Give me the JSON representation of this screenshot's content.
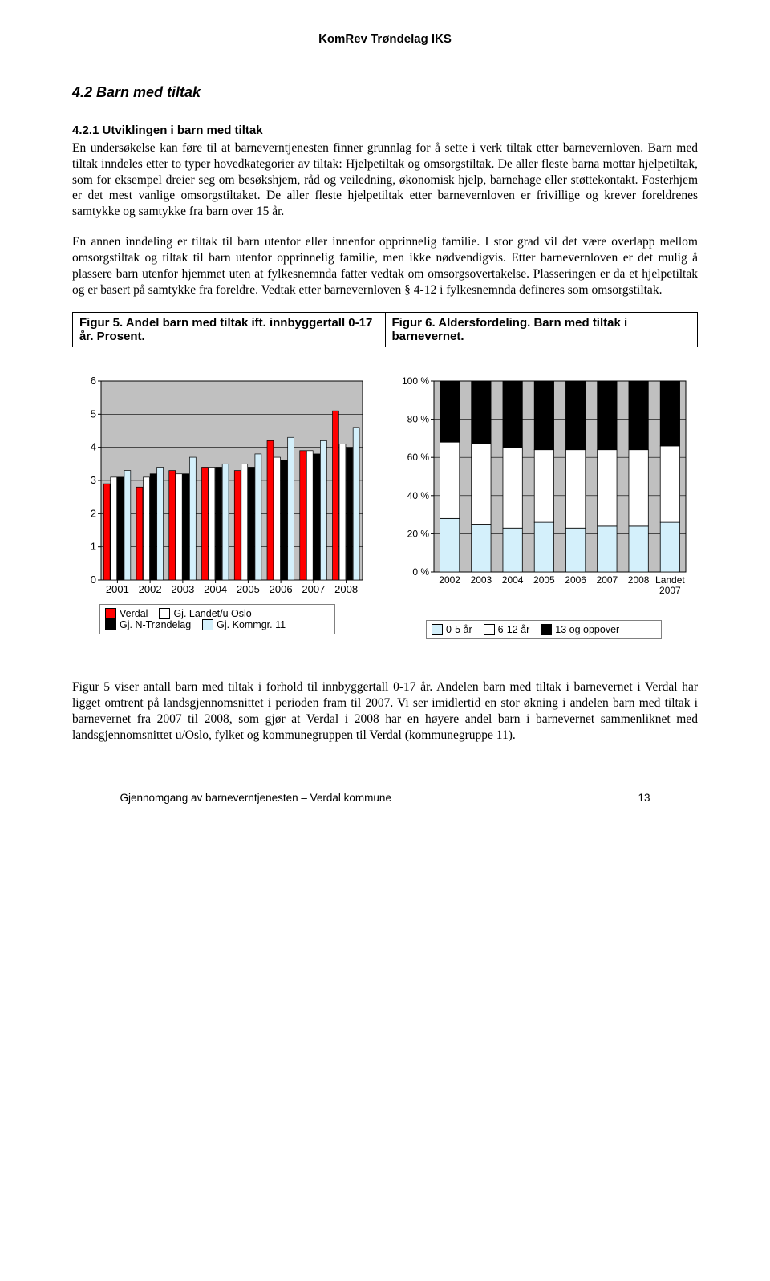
{
  "header": "KomRev Trøndelag IKS",
  "section_title": "4.2 Barn med tiltak",
  "subsection_title": "4.2.1 Utviklingen i barn med tiltak",
  "para1": "En undersøkelse kan føre til at barneverntjenesten finner grunnlag for å sette i verk tiltak etter barnevernloven. Barn med tiltak inndeles etter to typer hovedkategorier av tiltak: Hjelpetiltak og omsorgstiltak. De aller fleste barna mottar hjelpetiltak, som for eksempel dreier seg om besøkshjem, råd og veiledning, økonomisk hjelp, barnehage eller støttekontakt. Fosterhjem er det mest vanlige omsorgstiltaket. De aller fleste hjelpetiltak etter barnevernloven er frivillige og krever foreldrenes samtykke og samtykke fra barn over 15 år.",
  "para2": "En annen inndeling er tiltak til barn utenfor eller innenfor opprinnelig familie. I stor grad vil det være overlapp mellom omsorgstiltak og tiltak til barn utenfor opprinnelig familie, men ikke nødvendigvis. Etter barnevernloven er det mulig å plassere barn utenfor hjemmet uten at fylkesnemnda fatter vedtak om omsorgsovertakelse. Plasseringen er da et hjelpetiltak og er basert på samtykke fra foreldre. Vedtak etter barnevernloven § 4-12 i fylkesnemnda defineres som omsorgstiltak.",
  "fig5_title": "Figur 5. Andel barn med tiltak ift. innbyggertall 0-17 år. Prosent.",
  "fig6_title": "Figur 6. Aldersfordeling. Barn med tiltak i barnevernet.",
  "chart1": {
    "ymin": 0,
    "ymax": 6,
    "ystep": 1,
    "years": [
      "2001",
      "2002",
      "2003",
      "2004",
      "2005",
      "2006",
      "2007",
      "2008"
    ],
    "series": [
      {
        "name": "Verdal",
        "color": "#ff0000",
        "values": [
          2.9,
          2.8,
          3.3,
          3.4,
          3.3,
          4.2,
          3.9,
          5.1
        ]
      },
      {
        "name": "Gj. Landet/u Oslo",
        "color": "#ffffff",
        "values": [
          3.1,
          3.1,
          3.2,
          3.4,
          3.5,
          3.7,
          3.9,
          4.1
        ]
      },
      {
        "name": "Gj. N-Trøndelag",
        "color": "#000000",
        "values": [
          3.1,
          3.2,
          3.2,
          3.4,
          3.4,
          3.6,
          3.8,
          4.0
        ]
      },
      {
        "name": "Gj. Kommgr. 11",
        "color": "#d4f0fb",
        "values": [
          3.3,
          3.4,
          3.7,
          3.5,
          3.8,
          4.3,
          4.2,
          4.6
        ]
      }
    ],
    "legend": [
      {
        "label": "Verdal",
        "color": "#ff0000"
      },
      {
        "label": "Gj. Landet/u Oslo",
        "color": "#ffffff"
      },
      {
        "label": "Gj. N-Trøndelag",
        "color": "#000000"
      },
      {
        "label": "Gj. Kommgr. 11",
        "color": "#d4f0fb"
      }
    ],
    "bg": "#c0c0c0",
    "grid": "#000000",
    "axis_font": 13
  },
  "chart2": {
    "categories": [
      "2002",
      "2003",
      "2004",
      "2005",
      "2006",
      "2007",
      "2008",
      "Landet 2007"
    ],
    "series": [
      {
        "name": "0-5 år",
        "color": "#d4f0fb",
        "values": [
          28,
          25,
          23,
          26,
          23,
          24,
          24,
          26
        ]
      },
      {
        "name": "6-12 år",
        "color": "#ffffff",
        "values": [
          40,
          42,
          42,
          38,
          41,
          40,
          40,
          40
        ]
      },
      {
        "name": "13 og oppover",
        "color": "#000000",
        "values": [
          32,
          33,
          35,
          36,
          36,
          36,
          36,
          34
        ]
      }
    ],
    "yticks": [
      "0 %",
      "20 %",
      "40 %",
      "60 %",
      "80 %",
      "100 %"
    ],
    "legend": [
      {
        "label": "0-5 år",
        "color": "#d4f0fb"
      },
      {
        "label": "6-12 år",
        "color": "#ffffff"
      },
      {
        "label": "13 og oppover",
        "color": "#000000"
      }
    ],
    "bg": "#c0c0c0",
    "grid": "#000000",
    "axis_font": 12
  },
  "para3": "Figur 5 viser antall barn med tiltak i forhold til innbyggertall 0-17 år. Andelen barn med tiltak i barnevernet i Verdal har ligget omtrent på landsgjennomsnittet i perioden fram til 2007. Vi ser imidlertid en stor økning i andelen barn med tiltak i barnevernet fra 2007 til 2008, som gjør at Verdal i 2008 har en høyere andel barn i barnevernet sammenliknet med landsgjennomsnittet u/Oslo, fylket og kommunegruppen til Verdal (kommunegruppe 11).",
  "footer_text": "Gjennomgang av barneverntjenesten – Verdal kommune",
  "footer_page": "13"
}
